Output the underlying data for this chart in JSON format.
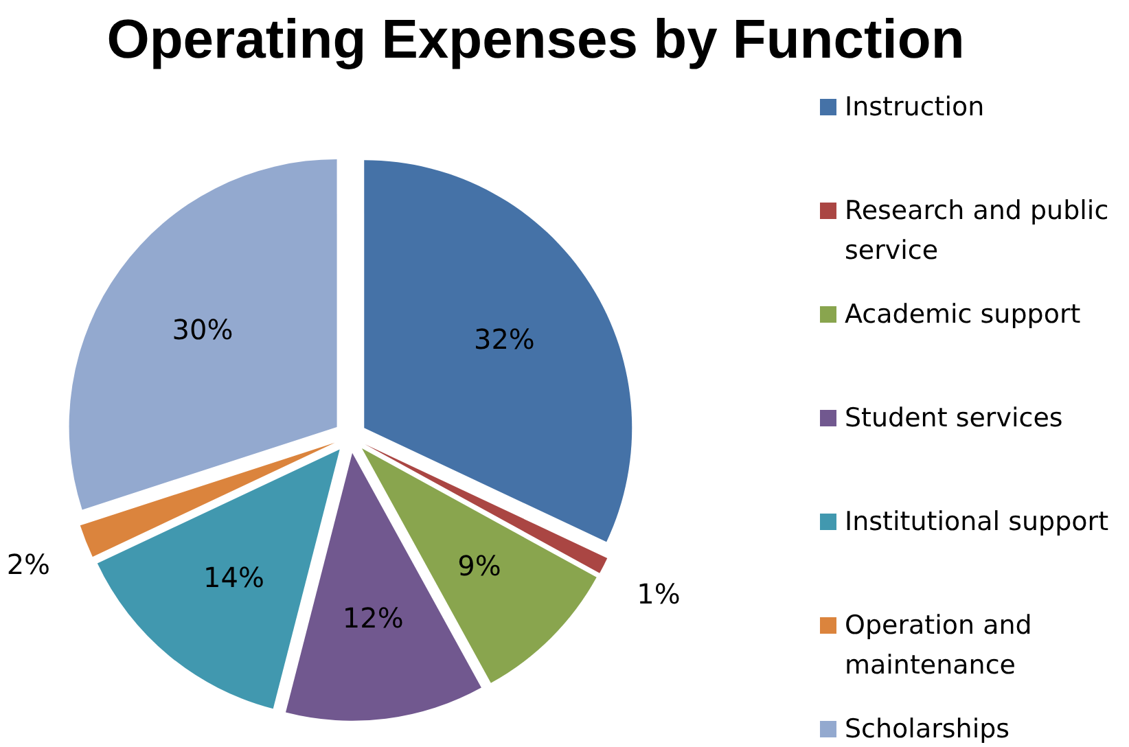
{
  "chart_data": {
    "type": "pie",
    "title": "Operating Expenses by Function",
    "categories": [
      "Instruction",
      "Research and public service",
      "Academic support",
      "Student services",
      "Institutional support",
      "Operation and maintenance",
      "Scholarships"
    ],
    "values": [
      32,
      1,
      9,
      12,
      14,
      2,
      30
    ],
    "colors": [
      "#4572a7",
      "#aa4643",
      "#89a54e",
      "#71588f",
      "#4198af",
      "#db843d",
      "#93a9cf"
    ],
    "value_labels": [
      "32%",
      "1%",
      "9%",
      "12%",
      "14%",
      "2%",
      "30%"
    ],
    "legend": "right"
  }
}
